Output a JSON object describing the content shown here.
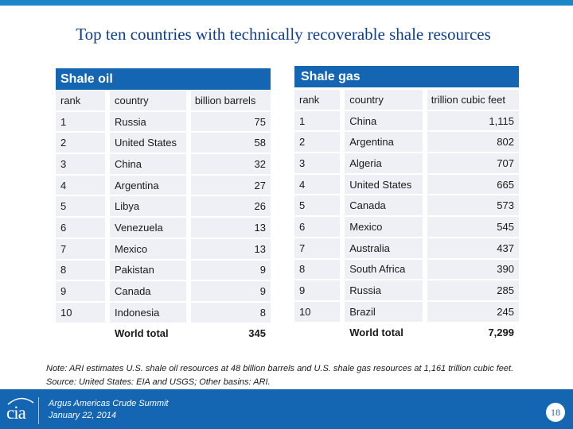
{
  "title": "Top ten countries with technically recoverable shale resources",
  "oil": {
    "heading": "Shale oil",
    "columns": [
      "rank",
      "country",
      "billion barrels"
    ],
    "rows": [
      {
        "rank": "1",
        "country": "Russia",
        "value": "75"
      },
      {
        "rank": "2",
        "country": "United States",
        "value": "58"
      },
      {
        "rank": "3",
        "country": "China",
        "value": "32"
      },
      {
        "rank": "4",
        "country": "Argentina",
        "value": "27"
      },
      {
        "rank": "5",
        "country": "Libya",
        "value": "26"
      },
      {
        "rank": "6",
        "country": "Venezuela",
        "value": "13"
      },
      {
        "rank": "7",
        "country": "Mexico",
        "value": "13"
      },
      {
        "rank": "8",
        "country": "Pakistan",
        "value": "9"
      },
      {
        "rank": "9",
        "country": "Canada",
        "value": "9"
      },
      {
        "rank": "10",
        "country": "Indonesia",
        "value": "8"
      }
    ],
    "total_label": "World total",
    "total_value": "345"
  },
  "gas": {
    "heading": "Shale gas",
    "columns": [
      "rank",
      "country",
      "trillion cubic feet"
    ],
    "rows": [
      {
        "rank": "1",
        "country": "China",
        "value": "1,115"
      },
      {
        "rank": "2",
        "country": "Argentina",
        "value": "802"
      },
      {
        "rank": "3",
        "country": "Algeria",
        "value": "707"
      },
      {
        "rank": "4",
        "country": "United States",
        "value": "665"
      },
      {
        "rank": "5",
        "country": "Canada",
        "value": "573"
      },
      {
        "rank": "6",
        "country": "Mexico",
        "value": "545"
      },
      {
        "rank": "7",
        "country": "Australia",
        "value": "437"
      },
      {
        "rank": "8",
        "country": "South Africa",
        "value": "390"
      },
      {
        "rank": "9",
        "country": "Russia",
        "value": "285"
      },
      {
        "rank": "10",
        "country": "Brazil",
        "value": "245"
      }
    ],
    "total_label": "World total",
    "total_value": "7,299"
  },
  "note": {
    "line1": "Note: ARI estimates U.S. shale oil resources at 48 billion barrels and U.S. shale gas resources at 1,161 trillion cubic feet.",
    "line2": "Source: United States: EIA and USGS; Other basins: ARI."
  },
  "footer": {
    "logo_text": "cia",
    "conference": "Argus Americas Crude Summit",
    "date": "January 22, 2014",
    "page_number": "18"
  },
  "colors": {
    "accent": "#1466b3",
    "top_bar": "#1b87c9",
    "title": "#0f3f8c",
    "row_fill": "#eef0f5"
  }
}
